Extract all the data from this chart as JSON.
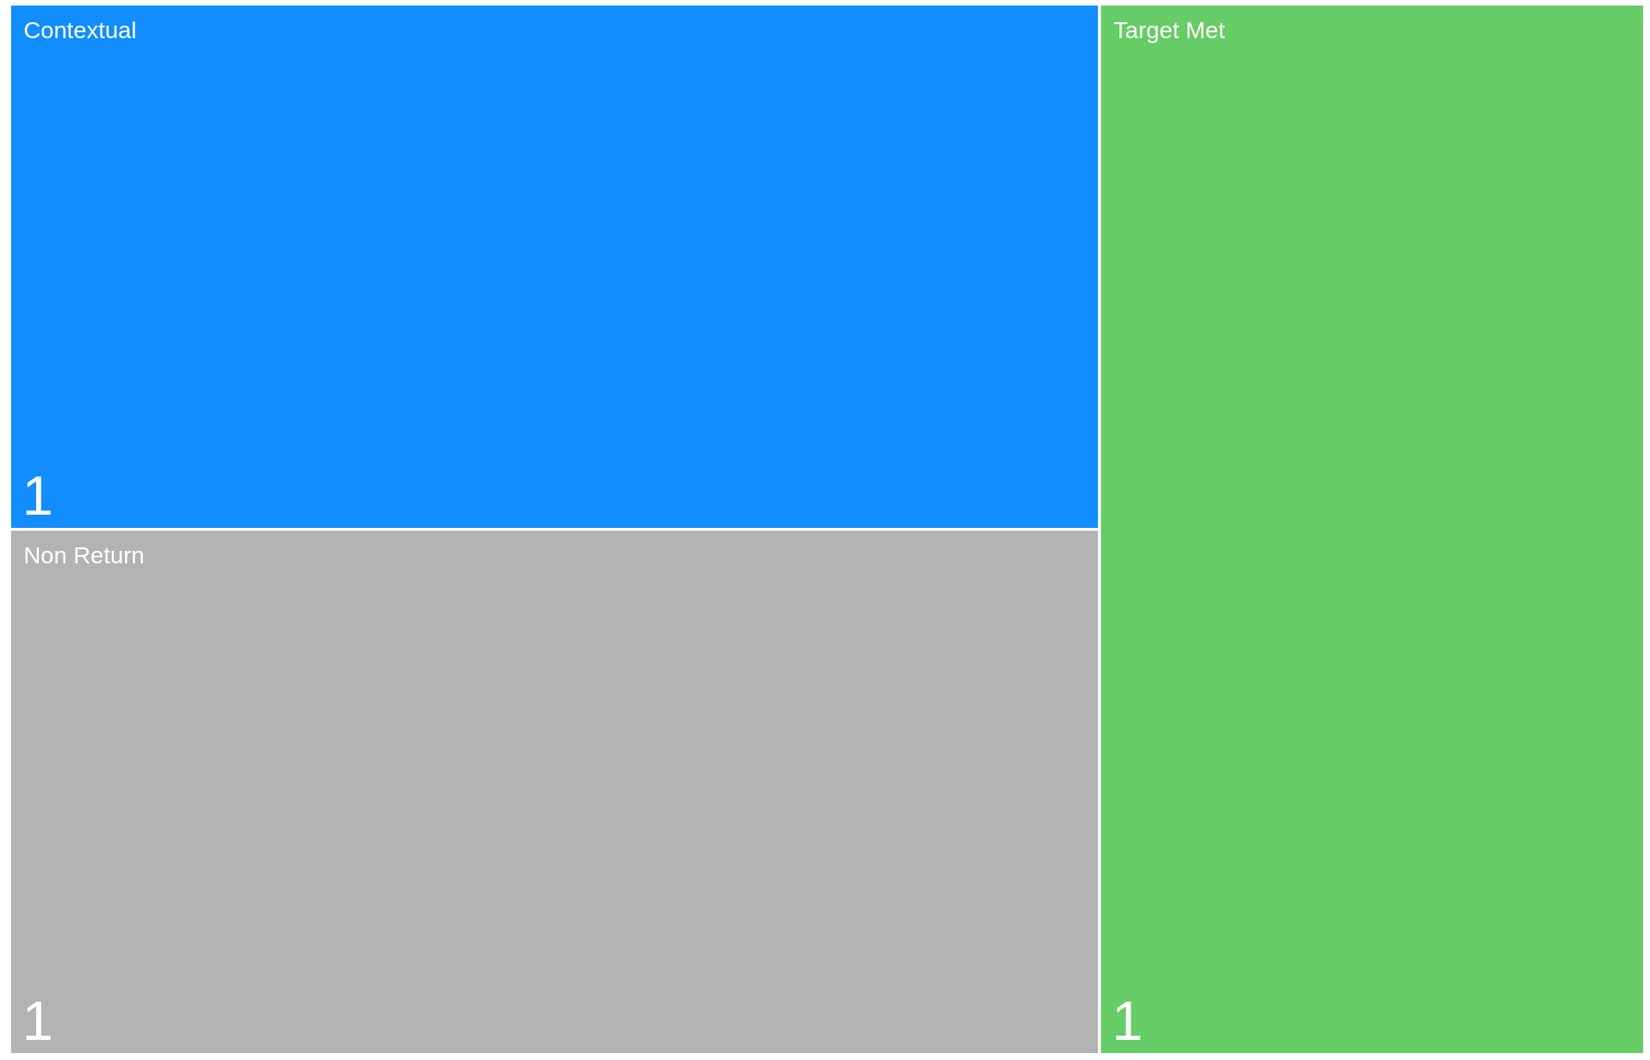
{
  "chart_data": {
    "type": "other",
    "categories": [
      "Contextual",
      "Non Return",
      "Target Met"
    ],
    "values": [
      1,
      1,
      1
    ],
    "data_labels": true,
    "colors": [
      "#118dff",
      "#b3b3b3",
      "#66cc66"
    ]
  }
}
